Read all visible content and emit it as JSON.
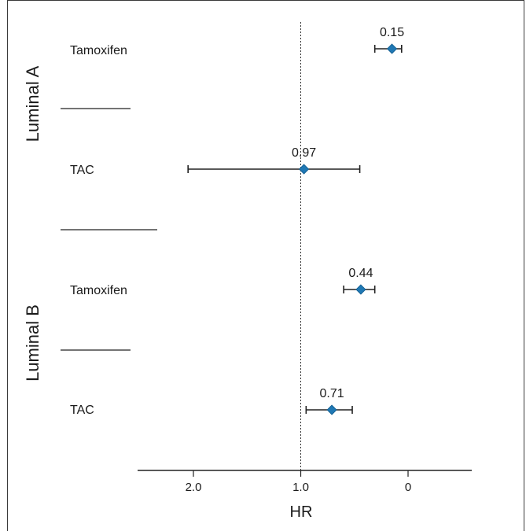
{
  "chart_data": {
    "type": "forest",
    "xlabel": "HR",
    "x_ticks": [
      {
        "value": 2.0,
        "label": "2.0"
      },
      {
        "value": 1.0,
        "label": "1.0"
      },
      {
        "value": 0,
        "label": "0"
      }
    ],
    "xlim_reversed": [
      2.5,
      -0.6
    ],
    "reference_line": 1.0,
    "marker_color": "#1f78b4",
    "groups": [
      {
        "name": "Luminal A",
        "rows": [
          {
            "label": "Tamoxifen",
            "hr": 0.15,
            "hr_label": "0.15",
            "ci": [
              0.31,
              0.06
            ]
          },
          {
            "label": "TAC",
            "hr": 0.97,
            "hr_label": "0.97",
            "ci": [
              2.05,
              0.45
            ]
          }
        ]
      },
      {
        "name": "Luminal B",
        "rows": [
          {
            "label": "Tamoxifen",
            "hr": 0.44,
            "hr_label": "0.44",
            "ci": [
              0.6,
              0.31
            ]
          },
          {
            "label": "TAC",
            "hr": 0.71,
            "hr_label": "0.71",
            "ci": [
              0.95,
              0.52
            ]
          }
        ]
      }
    ]
  }
}
